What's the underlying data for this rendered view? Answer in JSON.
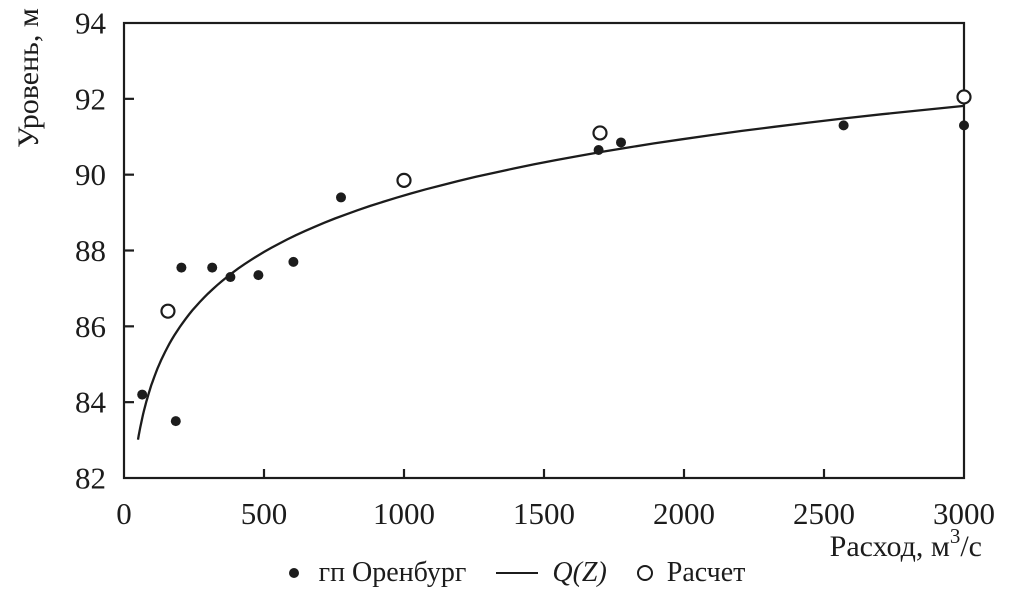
{
  "colors": {
    "ink": "#1c1c1c",
    "background": "#ffffff"
  },
  "chart_data": {
    "type": "scatter",
    "title": "",
    "xlabel": {
      "text": "Расход, м",
      "sup": "3",
      "after": "/с"
    },
    "ylabel": "Уровень, м",
    "xlim": [
      0,
      3000
    ],
    "ylim": [
      82,
      94
    ],
    "xticks": [
      0,
      500,
      1000,
      1500,
      2000,
      2500,
      3000
    ],
    "yticks": [
      82,
      84,
      86,
      88,
      90,
      92,
      94
    ],
    "grid": false,
    "frame": "full-box",
    "legend_position": "bottom-center",
    "series": [
      {
        "name": "гп Оренбург",
        "type": "scatter",
        "marker": "filled-dot",
        "color": "#1c1c1c",
        "points": [
          [
            65,
            84.2
          ],
          [
            185,
            83.5
          ],
          [
            205,
            87.55
          ],
          [
            315,
            87.55
          ],
          [
            380,
            87.3
          ],
          [
            480,
            87.35
          ],
          [
            605,
            87.7
          ],
          [
            775,
            89.4
          ],
          [
            1695,
            90.65
          ],
          [
            1775,
            90.85
          ],
          [
            2570,
            91.3
          ],
          [
            3000,
            91.3
          ]
        ]
      },
      {
        "name": "Q(Z)",
        "type": "line",
        "color": "#1c1c1c",
        "curve_fit": {
          "formula": "y = a + b*ln(x)",
          "a": 74.6,
          "b": 2.15,
          "x_start": 50,
          "x_end": 3000
        }
      },
      {
        "name": "Расчет",
        "type": "scatter",
        "marker": "open-circle",
        "color": "#1c1c1c",
        "points": [
          [
            157,
            86.4
          ],
          [
            1000,
            89.85
          ],
          [
            1700,
            91.1
          ],
          [
            3000,
            92.05
          ]
        ]
      }
    ]
  },
  "legend": {
    "items": [
      {
        "label": "гп Оренбург",
        "marker": "filled-dot"
      },
      {
        "label": "Q(Z)",
        "marker": "line"
      },
      {
        "label": "Расчет",
        "marker": "open-circle"
      }
    ]
  }
}
